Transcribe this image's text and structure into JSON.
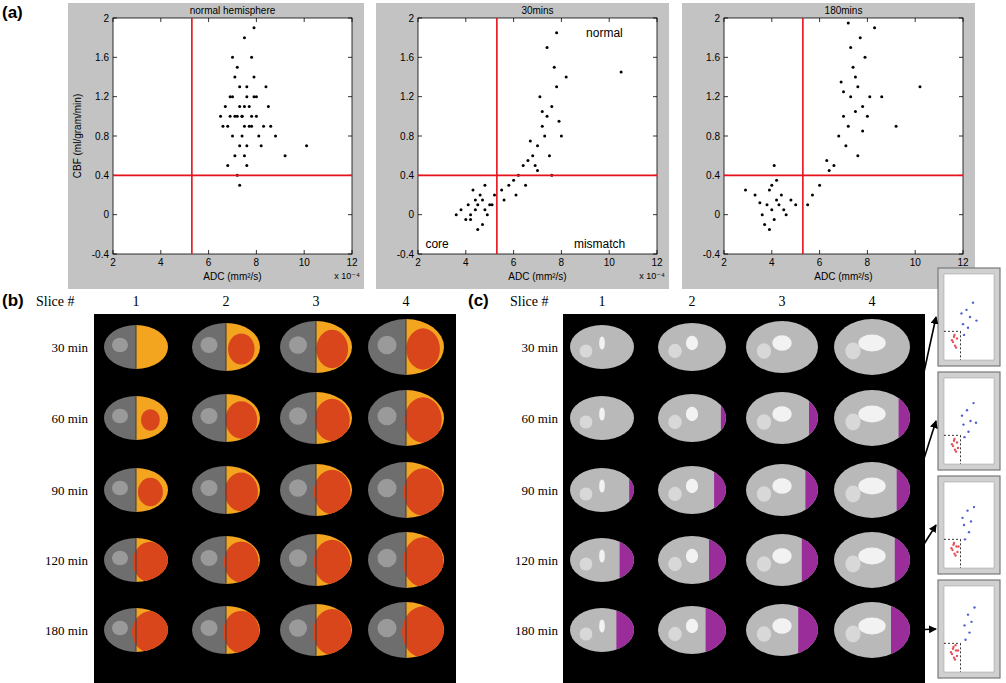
{
  "chart_data": [
    {
      "type": "scatter",
      "title": "normal hemisphere",
      "x_label": "ADC (mm²/s)",
      "y_label": "CBF (ml/gram/min)",
      "x_multiplier": "x 10⁻⁴",
      "xlim": [
        2,
        12
      ],
      "ylim": [
        -0.4,
        2
      ],
      "xticks": [
        2,
        4,
        6,
        8,
        10,
        12
      ],
      "yticks": [
        -0.4,
        0,
        0.4,
        0.8,
        1.2,
        1.6,
        2
      ],
      "thresholds": {
        "x": 5.3,
        "y": 0.4
      },
      "series": [
        {
          "color": "#000000",
          "marker": "dot",
          "x": [
            7.2,
            7.5,
            7.8,
            7.0,
            7.4,
            8.0,
            7.6,
            6.8,
            7.3,
            7.9,
            8.3,
            7.1,
            7.7,
            6.9,
            7.5,
            8.1,
            7.2,
            7.8,
            6.7,
            7.4,
            8.5,
            7.0,
            7.6,
            7.3,
            8.2,
            6.6,
            7.9,
            7.1,
            7.5,
            7.7,
            8.8,
            6.9,
            7.4,
            7.2,
            8.0,
            7.6,
            6.5,
            7.8,
            9.2,
            7.3,
            7.0,
            8.4,
            7.5,
            10.1,
            6.8,
            7.9,
            7.3,
            8.6,
            7.1,
            7.6
          ],
          "values": [
            1.0,
            1.1,
            0.9,
            1.2,
            0.8,
            1.0,
            1.3,
            0.9,
            0.7,
            1.2,
            0.9,
            1.4,
            1.1,
            1.0,
            0.6,
            0.8,
            1.5,
            1.6,
            1.1,
            1.0,
            1.1,
            0.8,
            0.5,
            1.3,
            0.7,
            0.9,
            1.4,
            0.6,
            1.8,
            0.9,
            0.8,
            1.2,
            1.0,
            0.4,
            1.2,
            0.7,
            1.0,
            1.0,
            0.6,
            1.1,
            1.6,
            1.3,
            0.9,
            0.7,
            0.5,
            1.9,
            0.3,
            0.9,
            1.0,
            1.2
          ]
        }
      ]
    },
    {
      "type": "scatter",
      "title": "30mins",
      "x_label": "ADC (mm²/s)",
      "x_multiplier": "x 10⁻⁴",
      "xlim": [
        2,
        12
      ],
      "ylim": [
        -0.4,
        2
      ],
      "xticks": [
        2,
        4,
        6,
        8,
        10,
        12
      ],
      "yticks": [
        -0.4,
        0,
        0.4,
        0.8,
        1.2,
        1.6,
        2
      ],
      "thresholds": {
        "x": 5.3,
        "y": 0.4
      },
      "annotations": [
        {
          "text": "normal",
          "x": 9.8,
          "y": 1.85
        },
        {
          "text": "core",
          "x": 2.8,
          "y": -0.3
        },
        {
          "text": "mismatch",
          "x": 9.6,
          "y": -0.3
        }
      ],
      "series": [
        {
          "color": "#000000",
          "marker": "dot",
          "x": [
            4.2,
            4.5,
            4.8,
            4.0,
            4.4,
            4.7,
            5.0,
            4.3,
            3.8,
            4.6,
            4.9,
            4.1,
            4.5,
            5.2,
            3.6,
            4.4,
            4.8,
            5.1,
            4.2,
            4.7,
            5.5,
            5.8,
            6.0,
            6.2,
            6.4,
            6.6,
            6.8,
            5.6,
            6.1,
            6.5,
            7.0,
            7.2,
            7.4,
            7.6,
            7.8,
            7.3,
            7.5,
            7.1,
            7.7,
            7.9,
            7.4,
            7.6,
            6.9,
            8.2,
            7.0,
            7.8,
            8.0,
            6.7,
            7.2,
            10.5
          ],
          "values": [
            0.0,
            0.1,
            0.05,
            -0.05,
            0.15,
            -0.1,
            0.1,
            0.25,
            0.05,
            0.2,
            0.0,
            0.1,
            -0.15,
            0.2,
            0.0,
            0.05,
            0.3,
            0.1,
            -0.05,
            0.15,
            0.25,
            0.3,
            0.35,
            0.4,
            0.5,
            0.55,
            0.6,
            0.15,
            0.2,
            0.3,
            0.7,
            0.9,
            1.0,
            1.1,
            1.3,
            0.8,
            0.6,
            1.2,
            1.5,
            0.95,
            1.7,
            0.4,
            0.5,
            1.4,
            0.45,
            1.85,
            0.8,
            0.75,
            1.05,
            1.45
          ]
        }
      ]
    },
    {
      "type": "scatter",
      "title": "180mins",
      "x_label": "ADC (mm²/s)",
      "x_multiplier": "x 10⁻⁴",
      "xlim": [
        2,
        12
      ],
      "ylim": [
        -0.4,
        2
      ],
      "xticks": [
        2,
        4,
        6,
        8,
        10,
        12
      ],
      "yticks": [
        -0.4,
        0,
        0.4,
        0.8,
        1.2,
        1.6,
        2
      ],
      "thresholds": {
        "x": 5.3,
        "y": 0.4
      },
      "series": [
        {
          "color": "#000000",
          "marker": "dot",
          "x": [
            3.8,
            4.0,
            4.2,
            3.6,
            4.1,
            4.4,
            3.9,
            4.3,
            3.5,
            4.6,
            4.0,
            3.7,
            4.5,
            4.2,
            3.3,
            4.8,
            3.9,
            4.1,
            5.0,
            2.9,
            7.0,
            7.3,
            7.6,
            7.8,
            7.2,
            7.5,
            7.9,
            8.1,
            6.8,
            7.4,
            7.7,
            7.1,
            8.0,
            7.6,
            6.6,
            7.3,
            8.3,
            6.4,
            7.0,
            7.8,
            6.0,
            6.3,
            5.7,
            8.6,
            9.2,
            7.5,
            6.9,
            5.5,
            7.2,
            10.2
          ],
          "values": [
            0.1,
            0.05,
            0.15,
            0.0,
            -0.05,
            0.2,
            0.25,
            0.1,
            0.12,
            0.0,
            0.3,
            -0.1,
            0.05,
            0.35,
            0.2,
            0.15,
            -0.15,
            0.5,
            0.1,
            0.25,
            1.0,
            1.2,
            1.3,
            1.1,
            0.9,
            1.4,
            1.6,
            1.2,
            0.8,
            1.5,
            1.8,
            0.7,
            1.0,
            0.6,
            0.5,
            1.7,
            1.9,
            0.45,
            1.25,
            0.85,
            0.3,
            0.55,
            0.2,
            1.2,
            0.9,
            1.05,
            1.35,
            0.1,
            1.95,
            1.3
          ]
        }
      ]
    },
    {
      "type": "scatter",
      "tick_labels": false,
      "xlim": [
        2,
        12
      ],
      "ylim": [
        -0.4,
        2
      ],
      "thresholds": {
        "x": 5.3,
        "y": 0.4
      },
      "series": [
        {
          "color": "#e8505b",
          "marker": "dot",
          "x": [
            3.8,
            4.2,
            4.6,
            4.0,
            4.4,
            3.6,
            4.1
          ],
          "values": [
            0.1,
            0.0,
            0.2,
            0.25,
            -0.05,
            0.15,
            0.3
          ]
        },
        {
          "color": "#5060d0",
          "marker": "dot",
          "x": [
            5.8,
            6.5,
            7.2,
            6.0,
            7.8,
            6.8,
            5.5,
            8.5
          ],
          "values": [
            0.6,
            1.0,
            0.8,
            0.3,
            1.2,
            0.5,
            0.9,
            0.7
          ]
        }
      ]
    },
    {
      "type": "scatter",
      "tick_labels": false,
      "xlim": [
        2,
        12
      ],
      "ylim": [
        -0.4,
        2
      ],
      "thresholds": {
        "x": 5.3,
        "y": 0.4
      },
      "series": [
        {
          "color": "#e8505b",
          "marker": "dot",
          "x": [
            3.8,
            4.2,
            4.6,
            4.0,
            4.4,
            3.6,
            4.8,
            4.1
          ],
          "values": [
            0.1,
            0.0,
            0.2,
            0.25,
            -0.05,
            0.15,
            0.05,
            0.3
          ]
        },
        {
          "color": "#5060d0",
          "marker": "dot",
          "x": [
            5.9,
            6.6,
            7.3,
            6.1,
            7.9,
            6.9,
            5.6,
            8.4
          ],
          "values": [
            0.7,
            1.1,
            0.8,
            0.35,
            1.3,
            0.5,
            0.95,
            0.75
          ]
        }
      ]
    },
    {
      "type": "scatter",
      "tick_labels": false,
      "xlim": [
        2,
        12
      ],
      "ylim": [
        -0.4,
        2
      ],
      "thresholds": {
        "x": 5.3,
        "y": 0.4
      },
      "series": [
        {
          "color": "#e8505b",
          "marker": "dot",
          "x": [
            3.7,
            4.1,
            4.5,
            3.9,
            4.3,
            3.5,
            4.7,
            4.0,
            4.9
          ],
          "values": [
            0.1,
            0.0,
            0.2,
            0.25,
            -0.05,
            0.15,
            0.05,
            0.3,
            0.2
          ]
        },
        {
          "color": "#5060d0",
          "marker": "dot",
          "x": [
            6.0,
            6.7,
            7.4,
            6.2,
            8.0,
            7.0,
            5.7
          ],
          "values": [
            0.8,
            1.2,
            0.9,
            0.4,
            1.3,
            0.6,
            1.0
          ]
        }
      ]
    },
    {
      "type": "scatter",
      "tick_labels": false,
      "xlim": [
        2,
        12
      ],
      "ylim": [
        -0.4,
        2
      ],
      "thresholds": {
        "x": 5.3,
        "y": 0.4
      },
      "series": [
        {
          "color": "#e8505b",
          "marker": "dot",
          "x": [
            3.6,
            4.0,
            4.4,
            3.8,
            4.2,
            3.4,
            4.6,
            3.9,
            4.8,
            4.3
          ],
          "values": [
            0.1,
            0.0,
            0.2,
            0.25,
            -0.05,
            0.15,
            0.05,
            0.3,
            0.2,
            0.35
          ]
        },
        {
          "color": "#5060d0",
          "marker": "dot",
          "x": [
            6.1,
            6.8,
            7.5,
            6.3,
            8.1,
            7.1
          ],
          "values": [
            0.9,
            1.2,
            1.0,
            0.5,
            1.4,
            0.7
          ]
        }
      ]
    }
  ],
  "panel_labels": [
    "(a)",
    "(b)",
    "(c)"
  ],
  "panel_b": {
    "slice_header": "Slice #",
    "slices": [
      "1",
      "2",
      "3",
      "4"
    ],
    "times": [
      "30 min",
      "60 min",
      "90 min",
      "120 min",
      "180 min"
    ],
    "core_fraction": [
      [
        0.0,
        0.35,
        0.45,
        0.45
      ],
      [
        0.2,
        0.5,
        0.55,
        0.55
      ],
      [
        0.35,
        0.55,
        0.6,
        0.6
      ],
      [
        0.7,
        0.6,
        0.6,
        0.65
      ],
      [
        0.75,
        0.65,
        0.65,
        0.7
      ]
    ]
  },
  "panel_c": {
    "slice_header": "Slice #",
    "slices": [
      "1",
      "2",
      "3",
      "4"
    ],
    "times": [
      "30 min",
      "60 min",
      "90 min",
      "120 min",
      "180 min"
    ],
    "lesion_fraction": [
      [
        0,
        0,
        0,
        0
      ],
      [
        0,
        0.15,
        0.25,
        0.3
      ],
      [
        0.15,
        0.35,
        0.35,
        0.35
      ],
      [
        0.45,
        0.5,
        0.45,
        0.4
      ],
      [
        0.55,
        0.6,
        0.55,
        0.5
      ]
    ]
  }
}
